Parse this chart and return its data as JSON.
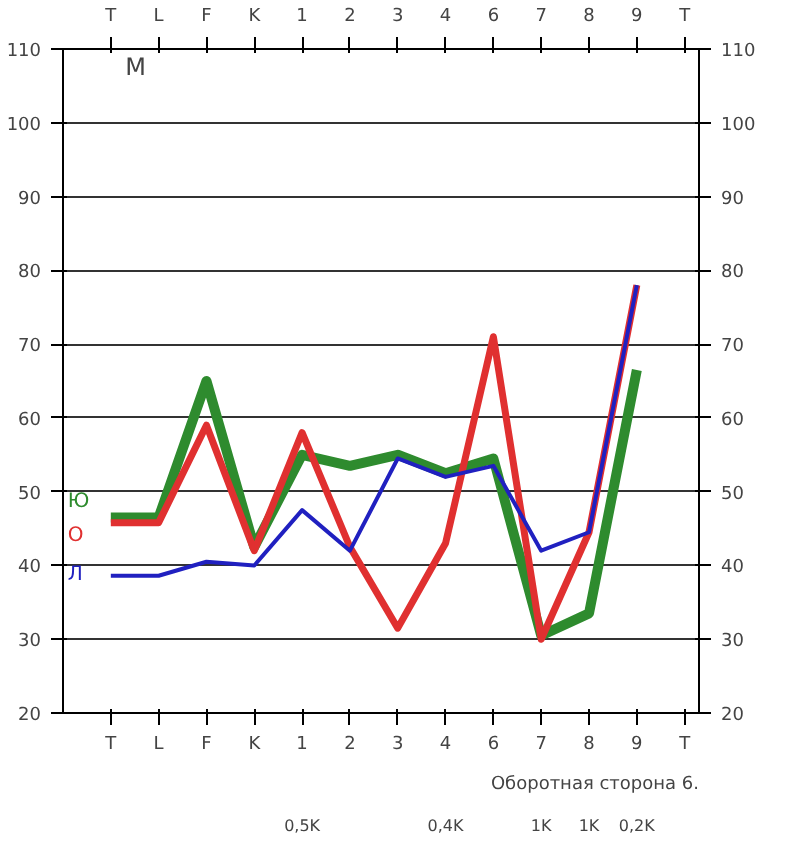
{
  "chart_data": {
    "type": "line",
    "title": "M",
    "categories": [
      "T",
      "L",
      "F",
      "K",
      "1",
      "2",
      "3",
      "4",
      "6",
      "7",
      "8",
      "9",
      "T"
    ],
    "series": [
      {
        "name": "Ю",
        "color": "#2e8b2e",
        "values": [
          46.5,
          46.5,
          65,
          42.5,
          55,
          53.5,
          55,
          52.5,
          54.5,
          30.5,
          33.5,
          66.5,
          null
        ]
      },
      {
        "name": "О",
        "color": "#e03030",
        "values": [
          45.8,
          45.8,
          59,
          42,
          58,
          42.5,
          31.5,
          43,
          71,
          30,
          44.5,
          78,
          null
        ]
      },
      {
        "name": "Л",
        "color": "#2020c0",
        "values": [
          38.6,
          38.6,
          40.5,
          40,
          47.5,
          42,
          54.5,
          52,
          53.5,
          42,
          44.5,
          78,
          null
        ]
      }
    ],
    "ylim": [
      20,
      110
    ],
    "yticks": [
      20,
      30,
      40,
      50,
      60,
      70,
      80,
      90,
      100,
      110
    ],
    "y2lim": [
      20,
      110
    ],
    "y2ticks": [
      20,
      30,
      40,
      50,
      60,
      70,
      80,
      90,
      100,
      110
    ],
    "grid": "y",
    "marker": "none",
    "line_style": "solid",
    "annotations": [
      "0,5K",
      "0,4K",
      "1K",
      "1K",
      "0,2K",
      "Оборотная сторона 6."
    ]
  }
}
